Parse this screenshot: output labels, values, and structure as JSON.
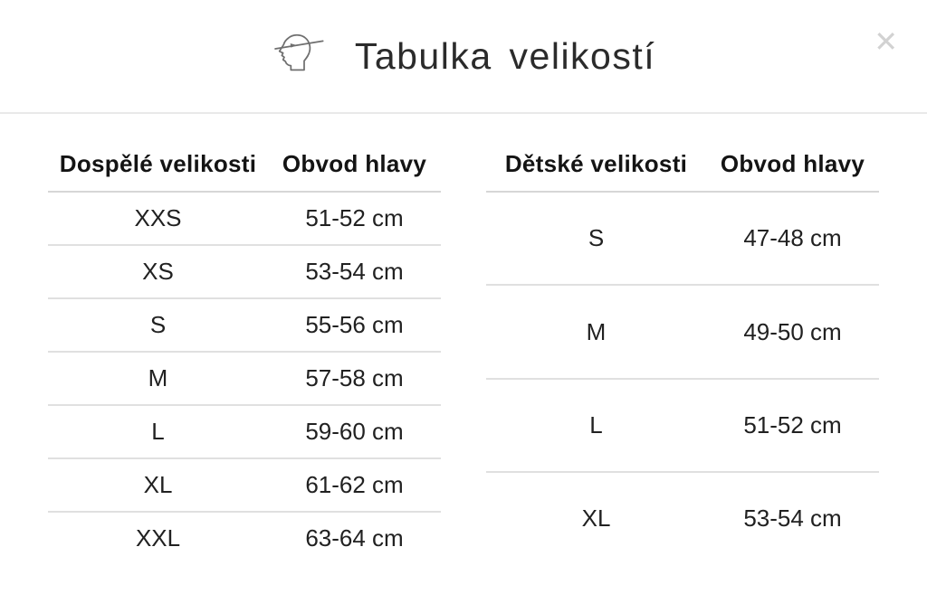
{
  "header": {
    "title": "Tabulka velikostí",
    "close_label": "✕",
    "icon": "head-measurement-icon"
  },
  "tables": [
    {
      "id": "adult",
      "columns": [
        "Dospělé velikosti",
        "Obvod hlavy"
      ],
      "rows": [
        [
          "XXS",
          "51-52 cm"
        ],
        [
          "XS",
          "53-54 cm"
        ],
        [
          "S",
          "55-56 cm"
        ],
        [
          "M",
          "57-58 cm"
        ],
        [
          "L",
          "59-60 cm"
        ],
        [
          "XL",
          "61-62 cm"
        ],
        [
          "XXL",
          "63-64 cm"
        ]
      ]
    },
    {
      "id": "children",
      "columns": [
        "Dětské velikosti",
        "Obvod hlavy"
      ],
      "rows": [
        [
          "S",
          "47-48 cm"
        ],
        [
          "M",
          "49-50 cm"
        ],
        [
          "L",
          "51-52 cm"
        ],
        [
          "XL",
          "53-54 cm"
        ]
      ]
    }
  ],
  "colors": {
    "background": "#ffffff",
    "title_text": "#2b2b2b",
    "table_header_text": "#141414",
    "table_cell_text": "#212121",
    "header_divider": "#e9e9e9",
    "table_header_rule": "#d6d6d6",
    "row_rule": "#e0e0e0",
    "close_icon": "#d2d2d2",
    "icon_stroke": "#6f6f6f"
  }
}
